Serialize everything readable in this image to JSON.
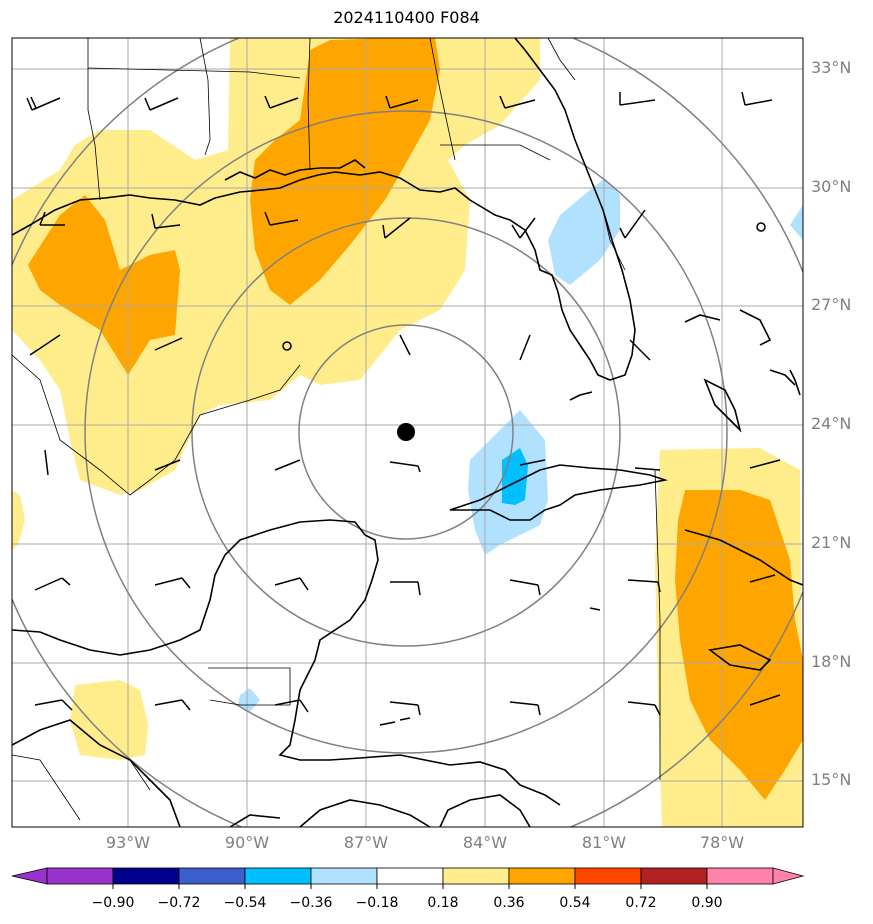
{
  "title": "2024110400 F084",
  "lat_labels": [
    "33°N",
    "30°N",
    "27°N",
    "24°N",
    "21°N",
    "18°N",
    "15°N"
  ],
  "lon_labels": [
    "93°W",
    "90°W",
    "87°W",
    "84°W",
    "81°W",
    "78°W"
  ],
  "colorbar": {
    "ticks": [
      "−0.90",
      "−0.72",
      "−0.54",
      "−0.36",
      "−0.18",
      "0.18",
      "0.36",
      "0.54",
      "0.72",
      "0.90"
    ],
    "colors": [
      "#9a32cd",
      "#00008b",
      "#3a5fcd",
      "#00bfff",
      "#b0e2ff",
      "#ffffff",
      "#ffec8b",
      "#ffa500",
      "#ff4500",
      "#b22222",
      "#ff82ab"
    ]
  },
  "colors": {
    "light_yellow": "#ffec8b",
    "orange": "#ffa500",
    "light_blue": "#b0e2ff",
    "deep_sky_blue": "#00bfff",
    "grid": "#a9a9a9",
    "range_rings": "#808080"
  },
  "storm_center_marker": "black-dot"
}
